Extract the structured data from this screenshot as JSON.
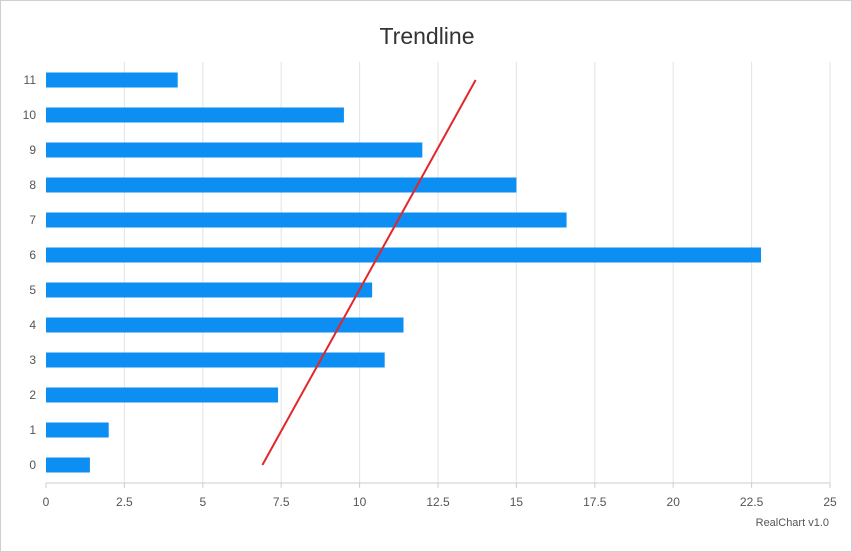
{
  "chart_data": {
    "type": "bar",
    "orientation": "horizontal",
    "title": "Trendline",
    "credit": "RealChart v1.0",
    "categories": [
      "0",
      "1",
      "2",
      "3",
      "4",
      "5",
      "6",
      "7",
      "8",
      "9",
      "10",
      "11"
    ],
    "series": [
      {
        "values": [
          1.4,
          2.0,
          7.4,
          10.8,
          11.4,
          10.4,
          22.8,
          16.6,
          15.0,
          12.0,
          9.5,
          4.2
        ]
      }
    ],
    "trendline": {
      "type": "linear",
      "start": {
        "category": 0,
        "value": 6.9
      },
      "end": {
        "category": 11,
        "value": 13.7
      }
    },
    "xaxis": {
      "ticks": [
        "0",
        "2.5",
        "5",
        "7.5",
        "10",
        "12.5",
        "15",
        "17.5",
        "20",
        "22.5",
        "25"
      ],
      "range": [
        0,
        25
      ],
      "grid": true
    },
    "colors": {
      "bar": "#0c8ef2",
      "trendline": "#e3262b",
      "grid": "#e3e3e3"
    }
  }
}
